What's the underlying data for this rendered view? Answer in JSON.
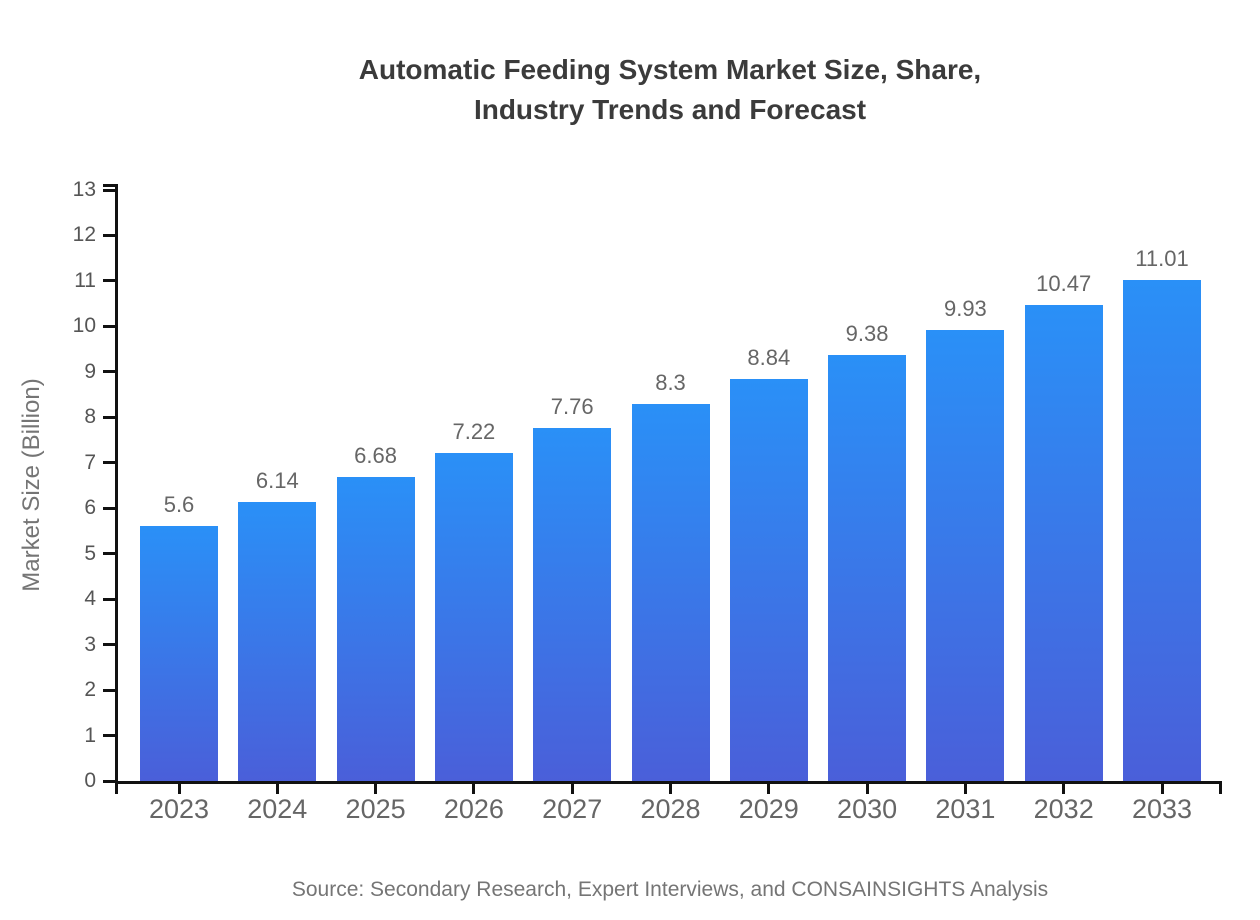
{
  "title": {
    "line1": "Automatic Feeding System Market Size, Share,",
    "line2": "Industry Trends and Forecast"
  },
  "source": "Source: Secondary Research, Expert Interviews, and CONSAINSIGHTS Analysis",
  "chart_data": {
    "type": "bar",
    "title": "Automatic Feeding System Market Size, Share, Industry Trends and Forecast",
    "categories": [
      "2023",
      "2024",
      "2025",
      "2026",
      "2027",
      "2028",
      "2029",
      "2030",
      "2031",
      "2032",
      "2033"
    ],
    "values": [
      5.6,
      6.14,
      6.68,
      7.22,
      7.76,
      8.3,
      8.84,
      9.38,
      9.93,
      10.47,
      11.01
    ],
    "value_labels": [
      "5.6",
      "6.14",
      "6.68",
      "7.22",
      "7.76",
      "8.3",
      "8.84",
      "9.38",
      "9.93",
      "10.47",
      "11.01"
    ],
    "xlabel": "",
    "ylabel": "Market Size (Billion)",
    "ylim": [
      0,
      13
    ],
    "yticks": [
      0,
      1,
      2,
      3,
      4,
      5,
      6,
      7,
      8,
      9,
      10,
      11,
      12,
      13
    ],
    "grid": false,
    "legend": null,
    "colors": {
      "bar_gradient_top": "#2a90f7",
      "bar_gradient_bottom": "#4a5fd9",
      "axis": "#111111",
      "title_text": "#3b3b3b",
      "tick_text": "#666666",
      "label_text": "#757575"
    }
  }
}
